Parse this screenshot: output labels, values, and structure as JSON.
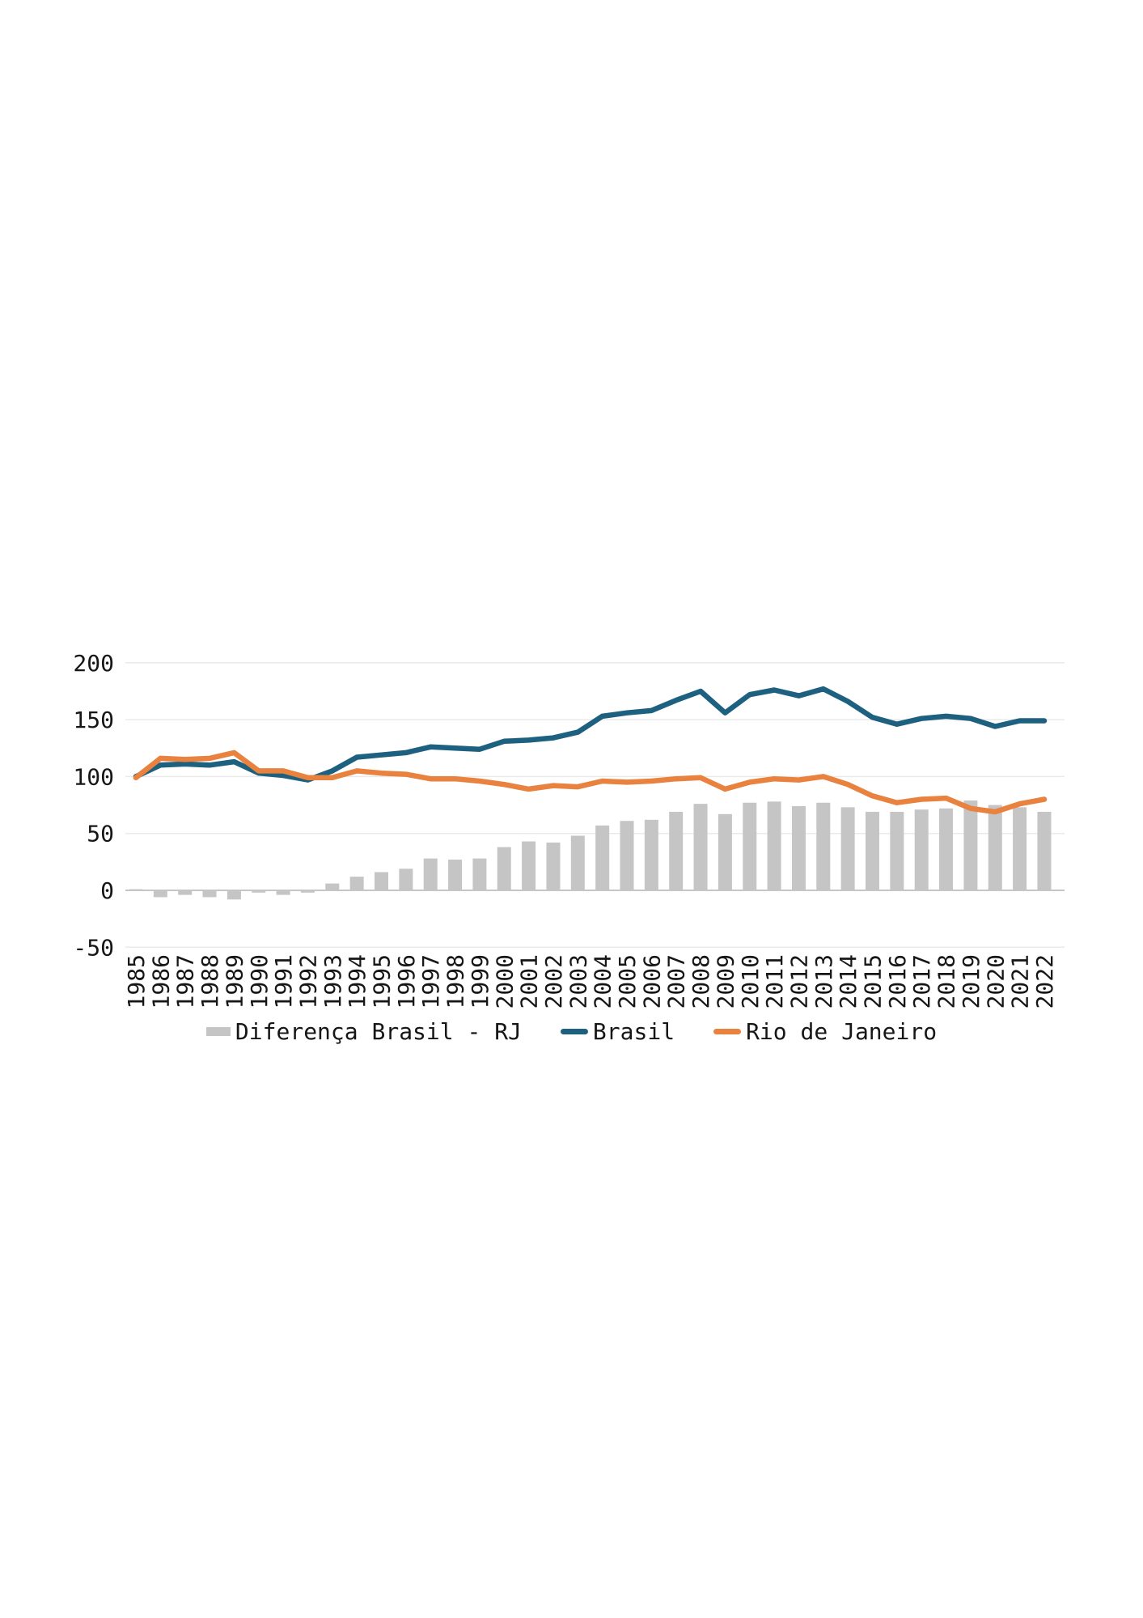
{
  "chart_data": {
    "type": "bar",
    "subtype": "combo-bar-line",
    "title": "",
    "xlabel": "",
    "ylabel": "",
    "categories": [
      "1985",
      "1986",
      "1987",
      "1988",
      "1989",
      "1990",
      "1991",
      "1992",
      "1993",
      "1994",
      "1995",
      "1996",
      "1997",
      "1998",
      "1999",
      "2000",
      "2001",
      "2002",
      "2003",
      "2004",
      "2005",
      "2006",
      "2007",
      "2008",
      "2009",
      "2010",
      "2011",
      "2012",
      "2013",
      "2014",
      "2015",
      "2016",
      "2017",
      "2018",
      "2019",
      "2020",
      "2021",
      "2022"
    ],
    "series": [
      {
        "name": "Diferença Brasil - RJ",
        "type": "bar",
        "color": "#c5c5c5",
        "values": [
          1,
          -6,
          -4,
          -6,
          -8,
          -2,
          -4,
          -2,
          6,
          12,
          16,
          19,
          28,
          27,
          28,
          38,
          43,
          42,
          48,
          57,
          61,
          62,
          69,
          76,
          67,
          77,
          78,
          74,
          77,
          73,
          69,
          69,
          71,
          72,
          79,
          75,
          73,
          69
        ]
      },
      {
        "name": "Brasil",
        "type": "line",
        "color": "#1e607f",
        "values": [
          100,
          110,
          111,
          110,
          113,
          103,
          101,
          97,
          105,
          117,
          119,
          121,
          126,
          125,
          124,
          131,
          132,
          134,
          139,
          153,
          156,
          158,
          167,
          175,
          156,
          172,
          176,
          171,
          177,
          166,
          152,
          146,
          151,
          153,
          151,
          144,
          149,
          149
        ]
      },
      {
        "name": "Rio de Janeiro",
        "type": "line",
        "color": "#e8823e",
        "values": [
          99,
          116,
          115,
          116,
          121,
          105,
          105,
          99,
          99,
          105,
          103,
          102,
          98,
          98,
          96,
          93,
          89,
          92,
          91,
          96,
          95,
          96,
          98,
          99,
          89,
          95,
          98,
          97,
          100,
          93,
          83,
          77,
          80,
          81,
          72,
          69,
          76,
          80
        ]
      }
    ],
    "y_ticks": [
      200,
      150,
      100,
      50,
      0,
      -50
    ],
    "y_tick_labels": [
      "200",
      "150",
      "100",
      "50",
      "0",
      "-50"
    ],
    "ylim": [
      -50,
      200
    ],
    "grid": "horizontal",
    "grid_color": "#eaeaea",
    "zero_line_color": "#c6c6c6",
    "text_color": "#161616",
    "legend_position": "bottom"
  }
}
